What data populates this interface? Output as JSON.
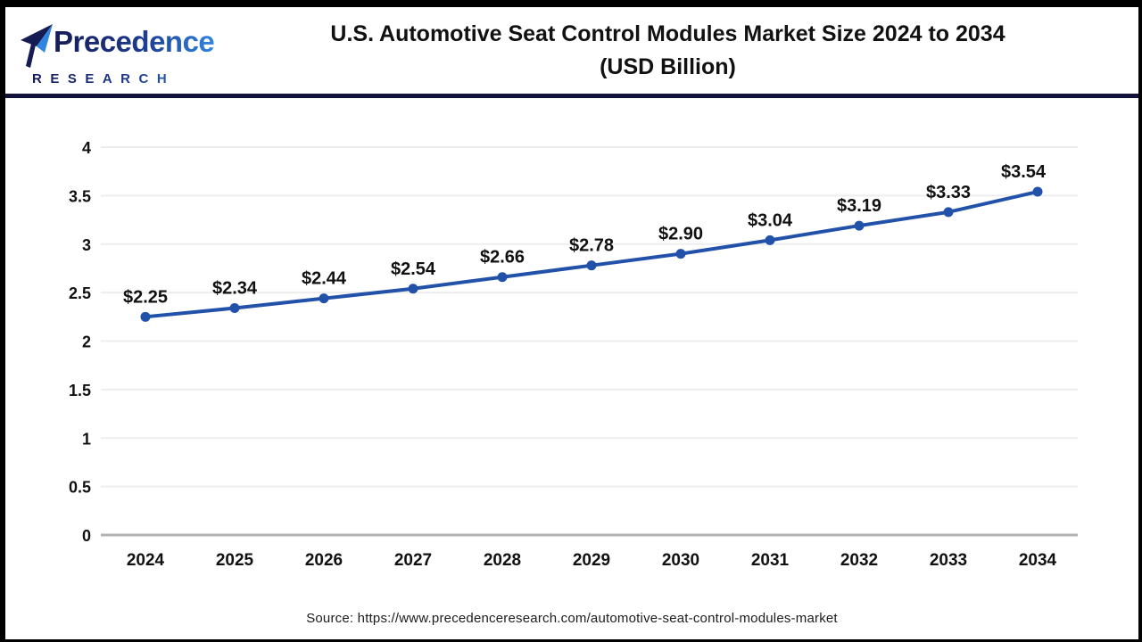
{
  "header": {
    "logo_name": "Precedence",
    "logo_subtitle": "RESEARCH",
    "title_line1": "U.S. Automotive Seat Control Modules Market Size 2024 to 2034",
    "title_line2": "(USD Billion)"
  },
  "chart_data": {
    "type": "line",
    "title": "U.S. Automotive Seat Control Modules Market Size 2024 to 2034 (USD Billion)",
    "x": [
      "2024",
      "2025",
      "2026",
      "2027",
      "2028",
      "2029",
      "2030",
      "2031",
      "2032",
      "2033",
      "2034"
    ],
    "series": [
      {
        "name": "U.S. Automotive Seat Control Modules Market Size (USD Billion)",
        "values": [
          2.25,
          2.34,
          2.44,
          2.54,
          2.66,
          2.78,
          2.9,
          3.04,
          3.19,
          3.33,
          3.54
        ]
      }
    ],
    "point_labels": [
      "$2.25",
      "$2.34",
      "$2.44",
      "$2.54",
      "$2.66",
      "$2.78",
      "$2.90",
      "$3.04",
      "$3.19",
      "$3.33",
      "$3.54"
    ],
    "xlabel": "",
    "ylabel": "",
    "ylim": [
      0,
      4
    ],
    "ytick_labels": [
      "0",
      "0.5",
      "1",
      "1.5",
      "2",
      "2.5",
      "3",
      "3.5",
      "4"
    ],
    "grid": true,
    "legend": "none"
  },
  "footer": {
    "source": "Source: https://www.precedenceresearch.com/automotive-seat-control-modules-market"
  },
  "colors": {
    "line": "#2151a8",
    "marker": "#2151a8",
    "grid": "#ededed",
    "zero_axis": "#b3b3b3",
    "divider": "#12123a",
    "title_text": "#111111",
    "label_text": "#111111",
    "logo_navy": "#151c54",
    "logo_blue": "#2f86e0",
    "frame": "#000000"
  }
}
